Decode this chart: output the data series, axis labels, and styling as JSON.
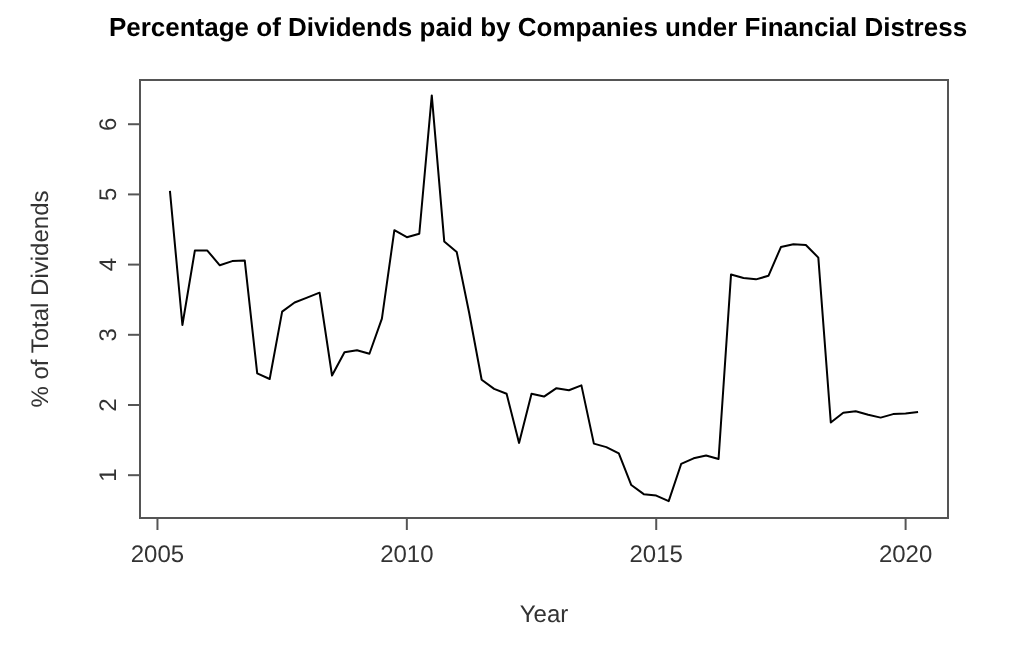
{
  "chart_data": {
    "type": "line",
    "title": "Percentage of Dividends paid by Companies under Financial Distress",
    "xlabel": "Year",
    "ylabel": "% of Total Dividends",
    "x": [
      2005.25,
      2005.5,
      2005.75,
      2006,
      2006.25,
      2006.5,
      2006.75,
      2007,
      2007.25,
      2007.5,
      2007.75,
      2008,
      2008.25,
      2008.5,
      2008.75,
      2009,
      2009.25,
      2009.5,
      2009.75,
      2010,
      2010.25,
      2010.5,
      2010.75,
      2011,
      2011.25,
      2011.5,
      2011.75,
      2012,
      2012.25,
      2012.5,
      2012.75,
      2013,
      2013.25,
      2013.5,
      2013.75,
      2014,
      2014.25,
      2014.5,
      2014.75,
      2015,
      2015.25,
      2015.5,
      2015.75,
      2016,
      2016.25,
      2016.5,
      2016.75,
      2017,
      2017.25,
      2017.5,
      2017.75,
      2018,
      2018.25,
      2018.5,
      2018.75,
      2019,
      2019.25,
      2019.5,
      2019.75,
      2020,
      2020.25
    ],
    "series": [
      {
        "color": "#000000",
        "values": [
          5.05,
          3.14,
          4.2,
          4.2,
          3.99,
          4.05,
          4.06,
          2.45,
          2.37,
          3.33,
          3.46,
          3.53,
          3.6,
          2.42,
          2.75,
          2.78,
          2.73,
          3.23,
          4.49,
          4.39,
          4.44,
          6.41,
          4.33,
          4.18,
          3.31,
          2.36,
          2.23,
          2.16,
          1.46,
          2.16,
          2.12,
          2.24,
          2.21,
          2.28,
          1.45,
          1.4,
          1.31,
          0.86,
          0.73,
          0.71,
          0.63,
          1.16,
          1.24,
          1.28,
          1.23,
          3.86,
          3.81,
          3.79,
          3.84,
          4.25,
          4.29,
          4.28,
          4.1,
          1.75,
          1.89,
          1.91,
          1.86,
          1.82,
          1.87,
          1.88,
          1.9
        ]
      }
    ],
    "xlim": [
      2004.65,
      2020.85
    ],
    "ylim": [
      0.39,
      6.63
    ],
    "xticks": [
      2005,
      2010,
      2015,
      2020
    ],
    "yticks": [
      1,
      2,
      3,
      4,
      5,
      6
    ],
    "grid": false,
    "marker": "none",
    "line_style": "solid"
  }
}
